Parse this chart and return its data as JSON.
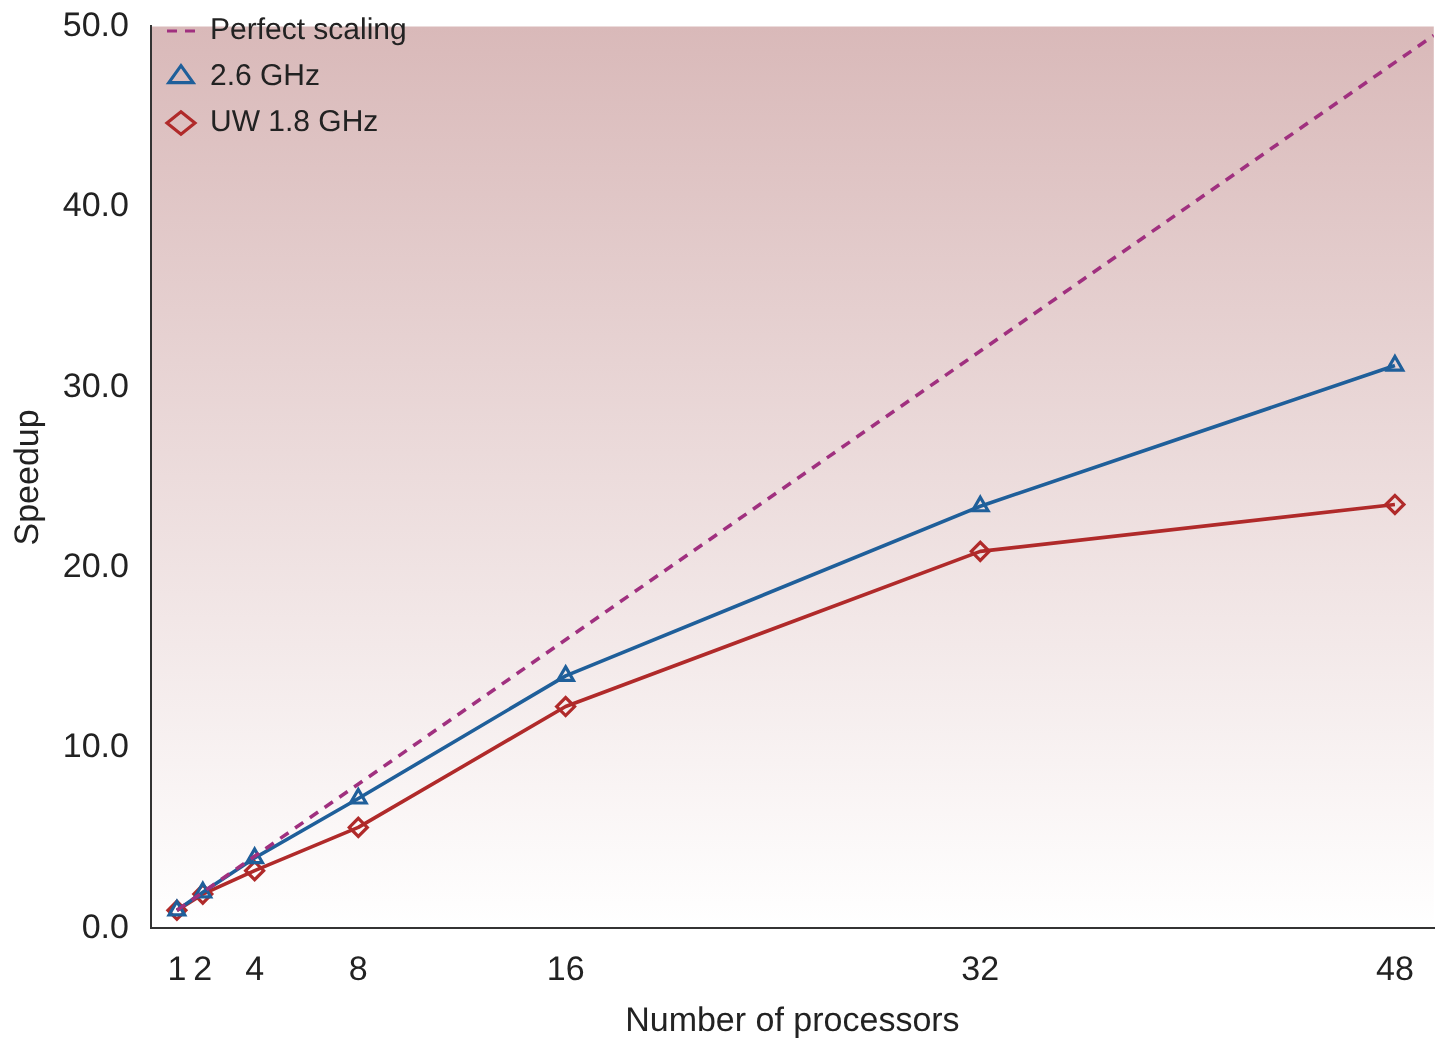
{
  "chart_data": {
    "type": "line",
    "xlabel": "Number of processors",
    "ylabel": "Speedup",
    "xlim": [
      0,
      49.5
    ],
    "xticks": [
      1,
      2,
      4,
      8,
      16,
      32,
      48
    ],
    "ylim": [
      0,
      50
    ],
    "yticks": [
      {
        "value": 0,
        "label": "0.0"
      },
      {
        "value": 10,
        "label": "10.0"
      },
      {
        "value": 20,
        "label": "20.0"
      },
      {
        "value": 30,
        "label": "30.0"
      },
      {
        "value": 40,
        "label": "40.0"
      },
      {
        "value": 50,
        "label": "50.0"
      }
    ],
    "grid": false,
    "legend": "top left",
    "series": [
      {
        "name": "Perfect scaling",
        "color": "#a0307f",
        "x": [
          1,
          49.5
        ],
        "values": [
          1,
          49.5
        ],
        "line_style": "dashed",
        "marker": "none"
      },
      {
        "name": "2.6 GHz",
        "color": "#1f5f9a",
        "x": [
          1,
          2,
          4,
          8,
          16,
          32,
          48
        ],
        "values": [
          1.0,
          2.0,
          3.9,
          7.2,
          14.0,
          23.4,
          31.2
        ],
        "line_style": "solid",
        "marker": "triangle"
      },
      {
        "name": "UW 1.8 GHz",
        "color": "#b02a2a",
        "x": [
          1,
          2,
          4,
          8,
          16,
          32,
          48
        ],
        "values": [
          1.0,
          1.9,
          3.2,
          5.6,
          12.3,
          20.9,
          23.5
        ],
        "line_style": "solid",
        "marker": "diamond"
      }
    ]
  }
}
